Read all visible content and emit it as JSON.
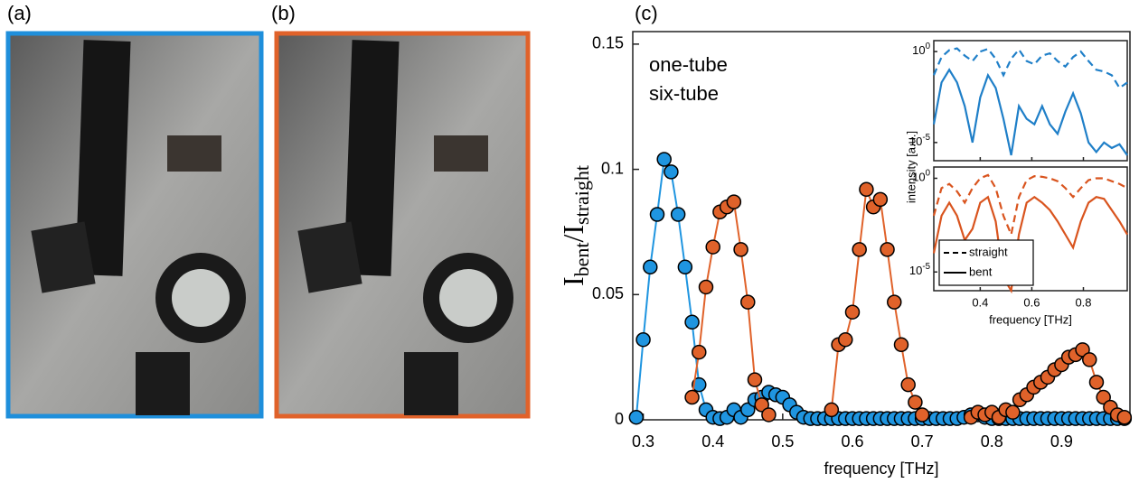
{
  "panel_labels": [
    "(a)",
    "(b)",
    "(c)"
  ],
  "chart_data": [
    {
      "type": "line",
      "markers": true,
      "ylabel": [
        "I",
        "bent",
        "/I",
        "straight"
      ],
      "xlabel": "frequency [THz]",
      "xlim": [
        0.285,
        0.998
      ],
      "ylim": [
        0,
        0.155
      ],
      "xticks": [
        0.3,
        0.4,
        0.5,
        0.6,
        0.7,
        0.8,
        0.9
      ],
      "yticks": [
        0,
        0.05,
        0.1,
        0.15
      ],
      "legend": "upper left",
      "series": [
        {
          "name": "one-tube",
          "color": "#1f95e0",
          "x": [
            0.29,
            0.3,
            0.31,
            0.32,
            0.33,
            0.34,
            0.35,
            0.36,
            0.37,
            0.38,
            0.39,
            0.4,
            0.41,
            0.42,
            0.43,
            0.44,
            0.45,
            0.46,
            0.47,
            0.48,
            0.49,
            0.5,
            0.51,
            0.52,
            0.53,
            0.54,
            0.55,
            0.56,
            0.57,
            0.58,
            0.59,
            0.6,
            0.61,
            0.62,
            0.63,
            0.64,
            0.65,
            0.66,
            0.67,
            0.68,
            0.69,
            0.7,
            0.71,
            0.72,
            0.73,
            0.74,
            0.75,
            0.76,
            0.77,
            0.78,
            0.79,
            0.8,
            0.81,
            0.82,
            0.83,
            0.84,
            0.85,
            0.86,
            0.87,
            0.88,
            0.89,
            0.9,
            0.91,
            0.92,
            0.93,
            0.94,
            0.95,
            0.96,
            0.97,
            0.98,
            0.99
          ],
          "values": [
            0.001,
            0.032,
            0.061,
            0.082,
            0.104,
            0.099,
            0.082,
            0.061,
            0.039,
            0.014,
            0.004,
            0.001,
            0.0005,
            0.001,
            0.004,
            0.001,
            0.004,
            0.008,
            0.009,
            0.011,
            0.01,
            0.009,
            0.006,
            0.003,
            0.001,
            0.0005,
            0.0005,
            0.0005,
            0.0005,
            0.0005,
            0.0005,
            0.0005,
            0.0005,
            0.0005,
            0.0005,
            0.0005,
            0.0005,
            0.0005,
            0.0005,
            0.0005,
            0.0005,
            0.0005,
            0.0005,
            0.0005,
            0.0005,
            0.0005,
            0.0005,
            0.001,
            0.002,
            0.002,
            0.001,
            0.0005,
            0.0005,
            0.0005,
            0.0005,
            0.0005,
            0.0005,
            0.0005,
            0.0005,
            0.0005,
            0.0005,
            0.0005,
            0.0005,
            0.0005,
            0.0005,
            0.0005,
            0.0005,
            0.0005,
            0.0005,
            0.0005,
            0.0005
          ]
        },
        {
          "name": "six-tube",
          "color": "#e0622a",
          "x": [
            0.37,
            0.38,
            0.39,
            0.4,
            0.41,
            0.42,
            0.43,
            0.44,
            0.45,
            0.46,
            0.47,
            0.48,
            0.525,
            0.57,
            0.58,
            0.59,
            0.6,
            0.61,
            0.62,
            0.63,
            0.64,
            0.65,
            0.66,
            0.67,
            0.68,
            0.69,
            0.7,
            0.735,
            0.77,
            0.78,
            0.79,
            0.8,
            0.81,
            0.82,
            0.83,
            0.84,
            0.85,
            0.86,
            0.87,
            0.88,
            0.89,
            0.9,
            0.91,
            0.92,
            0.93,
            0.94,
            0.95,
            0.96,
            0.97,
            0.98,
            0.99
          ],
          "values": [
            0.009,
            0.027,
            0.053,
            0.069,
            0.083,
            0.085,
            0.087,
            0.068,
            0.047,
            0.016,
            0.006,
            0.002,
            null,
            0.004,
            0.03,
            0.032,
            0.043,
            0.068,
            0.092,
            0.085,
            0.088,
            0.068,
            0.047,
            0.03,
            0.014,
            0.007,
            0.002,
            null,
            0.001,
            0.003,
            0.002,
            0.003,
            0.001,
            0.004,
            0.003,
            0.008,
            0.01,
            0.013,
            0.015,
            0.017,
            0.02,
            0.022,
            0.025,
            0.026,
            0.028,
            0.024,
            0.015,
            0.009,
            0.005,
            0.002,
            0.001
          ]
        }
      ]
    },
    {
      "type": "line",
      "yscale": "log",
      "ylabel": "intensity [a.u.]",
      "show_xtick_labels": false,
      "xlim": [
        0.22,
        0.97
      ],
      "ylim": [
        1e-06,
        4
      ],
      "xticks": [
        0.4,
        0.6,
        0.8
      ],
      "yticks": [
        {
          "value": 1,
          "label": "10",
          "exponent": "0"
        },
        {
          "value": 1e-05,
          "label": "10",
          "exponent": "-5"
        }
      ],
      "x": [
        0.22,
        0.25,
        0.28,
        0.31,
        0.34,
        0.37,
        0.4,
        0.43,
        0.46,
        0.49,
        0.52,
        0.55,
        0.58,
        0.61,
        0.64,
        0.67,
        0.7,
        0.73,
        0.76,
        0.79,
        0.82,
        0.85,
        0.88,
        0.91,
        0.94,
        0.97
      ],
      "series": [
        {
          "name": "straight",
          "color": "#1f7fc8",
          "dash": "dashed",
          "values": [
            0.05,
            0.5,
            1.2,
            1.5,
            0.6,
            0.3,
            1.0,
            1.4,
            0.4,
            0.05,
            0.4,
            1.3,
            0.3,
            0.2,
            0.6,
            0.8,
            0.3,
            0.15,
            0.5,
            1.0,
            0.3,
            0.1,
            0.08,
            0.05,
            0.01,
            0.02
          ]
        },
        {
          "name": "bent",
          "color": "#1f7fc8",
          "dash": "solid",
          "values": [
            0.0001,
            0.02,
            0.1,
            0.02,
            0.001,
            1e-05,
            0.003,
            0.05,
            0.01,
            0.0002,
            2e-06,
            0.001,
            0.0002,
            0.0001,
            0.001,
            0.0001,
            3e-05,
            0.0005,
            0.005,
            0.0004,
            1e-05,
            3e-06,
            1e-05,
            5e-06,
            8e-06,
            2e-06
          ]
        }
      ]
    },
    {
      "type": "line",
      "yscale": "log",
      "xlabel": "frequency [THz]",
      "xlim": [
        0.22,
        0.97
      ],
      "ylim": [
        1e-06,
        4
      ],
      "xticks": [
        0.4,
        0.6,
        0.8
      ],
      "yticks": [
        {
          "value": 1,
          "label": "10",
          "exponent": "0"
        },
        {
          "value": 1e-05,
          "label": "10",
          "exponent": "-5"
        }
      ],
      "legend": "lower left",
      "legend_color": "#000000",
      "x": [
        0.22,
        0.25,
        0.28,
        0.31,
        0.34,
        0.37,
        0.4,
        0.43,
        0.46,
        0.49,
        0.52,
        0.55,
        0.58,
        0.61,
        0.64,
        0.67,
        0.7,
        0.73,
        0.76,
        0.79,
        0.82,
        0.85,
        0.88,
        0.91,
        0.94,
        0.97
      ],
      "series": [
        {
          "name": "straight",
          "color": "#d9541e",
          "dash": "dashed",
          "values": [
            0.01,
            0.3,
            0.5,
            0.2,
            0.05,
            0.3,
            1.0,
            1.5,
            0.3,
            0.01,
            0.001,
            0.1,
            0.8,
            1.3,
            1.2,
            1.0,
            0.7,
            0.3,
            0.1,
            0.3,
            0.8,
            1.0,
            1.0,
            0.7,
            0.5,
            0.3
          ]
        },
        {
          "name": "bent",
          "color": "#d9541e",
          "dash": "solid",
          "values": [
            0.0001,
            0.01,
            0.05,
            0.01,
            0.0005,
            0.002,
            0.05,
            0.1,
            0.005,
            5e-06,
            1e-06,
            0.001,
            0.05,
            0.1,
            0.05,
            0.02,
            0.005,
            0.001,
            0.0002,
            0.005,
            0.05,
            0.1,
            0.08,
            0.02,
            0.005,
            0.001
          ]
        }
      ]
    }
  ]
}
